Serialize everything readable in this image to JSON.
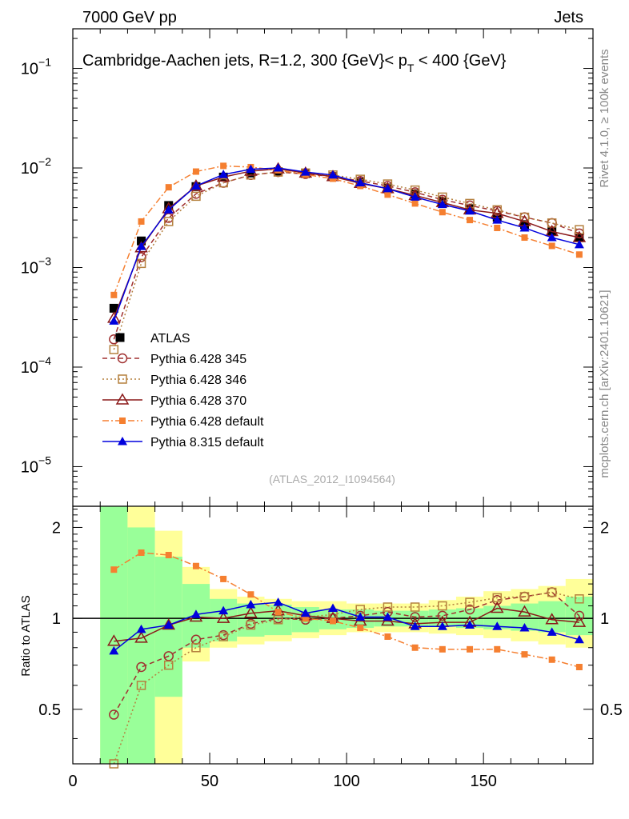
{
  "header": {
    "left": "7000 GeV pp",
    "right": "Jets"
  },
  "side": {
    "rivet": "Rivet 4.1.0, ≥ 100k events",
    "mcplots": "mcplots.cern.ch [arXiv:2401.10621]"
  },
  "colors": {
    "atlas": "#000000",
    "p345": "#a03030",
    "p346": "#b5813f",
    "p370": "#8b1a1a",
    "p6def": "#f57f30",
    "p8def": "#0000dd",
    "band_inner": "#99ff99",
    "band_outer": "#ffff99",
    "ref_line": "#000000"
  },
  "chart_data": [
    {
      "type": "line",
      "panel": "main",
      "title": "Cambridge-Aachen jets, R=1.2, 300 {GeV}< p_T < 400 {GeV}",
      "title_parts": {
        "main": "Cambridge-Aachen jets, R=1.2, 300 {GeV}< p",
        "sub": "T",
        "tail": " < 400 {GeV}"
      },
      "watermark": "(ATLAS_2012_I1094564)",
      "yscale": "log",
      "xlim": [
        0,
        190
      ],
      "ylim": [
        4e-06,
        0.25
      ],
      "ytick_labels": [
        {
          "base": "10",
          "exp": "−1"
        },
        {
          "base": "10",
          "exp": "−2"
        },
        {
          "base": "10",
          "exp": "−3"
        },
        {
          "base": "10",
          "exp": "−4"
        },
        {
          "base": "10",
          "exp": "−5"
        }
      ],
      "x": [
        15,
        25,
        35,
        45,
        55,
        65,
        75,
        85,
        95,
        105,
        115,
        125,
        135,
        145,
        155,
        165,
        175,
        185
      ],
      "series": [
        {
          "name": "ATLAS",
          "key": "atlas",
          "values": [
            0.00039,
            0.00185,
            0.0042,
            0.0065,
            0.0081,
            0.0089,
            0.0092,
            0.0088,
            0.0082,
            0.0072,
            0.0063,
            0.0055,
            0.0046,
            0.0039,
            0.0032,
            0.0027,
            0.0023,
            0.002
          ]
        },
        {
          "name": "Pythia 6.428 345",
          "key": "p345",
          "values": [
            0.00019,
            0.00127,
            0.00315,
            0.0055,
            0.0071,
            0.0085,
            0.0091,
            0.0087,
            0.0082,
            0.0074,
            0.0066,
            0.0057,
            0.0048,
            0.0042,
            0.0037,
            0.0032,
            0.0028,
            0.0022
          ]
        },
        {
          "name": "Pythia 6.428 346",
          "key": "p346",
          "values": [
            0.00015,
            0.0011,
            0.0029,
            0.0052,
            0.0071,
            0.0085,
            0.0091,
            0.0089,
            0.0085,
            0.0077,
            0.0069,
            0.006,
            0.0051,
            0.0044,
            0.0038,
            0.0032,
            0.0028,
            0.0024
          ]
        },
        {
          "name": "Pythia 6.428 370",
          "key": "p370",
          "values": [
            0.00031,
            0.00158,
            0.0039,
            0.0066,
            0.0081,
            0.0093,
            0.0098,
            0.0089,
            0.0082,
            0.007,
            0.0062,
            0.0053,
            0.0045,
            0.0038,
            0.0035,
            0.0029,
            0.0023,
            0.002
          ]
        },
        {
          "name": "Pythia 6.428 default",
          "key": "p6def",
          "values": [
            0.00053,
            0.0029,
            0.0064,
            0.0092,
            0.0105,
            0.0102,
            0.0095,
            0.0086,
            0.0078,
            0.0066,
            0.0054,
            0.0044,
            0.0036,
            0.003,
            0.0025,
            0.002,
            0.00165,
            0.00135
          ]
        },
        {
          "name": "Pythia 8.315 default",
          "key": "p8def",
          "values": [
            0.00029,
            0.00163,
            0.0038,
            0.0066,
            0.0086,
            0.0097,
            0.01,
            0.0091,
            0.0085,
            0.0071,
            0.0062,
            0.0051,
            0.0043,
            0.0037,
            0.003,
            0.0025,
            0.002,
            0.0017
          ]
        }
      ]
    },
    {
      "type": "line",
      "panel": "ratio",
      "ylabel": "Ratio to ATLAS",
      "xlim": [
        0,
        190
      ],
      "ylim": [
        0.33,
        2.35
      ],
      "yscale": "log",
      "yticks": [
        0.5,
        1,
        2
      ],
      "ytick_labels": [
        "0.5",
        "1",
        "2"
      ],
      "xticks": [
        0,
        50,
        100,
        150
      ],
      "xtick_labels": [
        "0",
        "50",
        "100",
        "150"
      ],
      "reference": 1.0,
      "bands": [
        {
          "lo": 10,
          "hi": 20,
          "inner": [
            0.3,
            2.6
          ],
          "outer": [
            0.3,
            2.6
          ]
        },
        {
          "lo": 20,
          "hi": 30,
          "inner": [
            0.3,
            2.0
          ],
          "outer": [
            0.3,
            2.6
          ]
        },
        {
          "lo": 30,
          "hi": 40,
          "inner": [
            0.55,
            1.6
          ],
          "outer": [
            0.3,
            1.95
          ]
        },
        {
          "lo": 40,
          "hi": 50,
          "inner": [
            0.8,
            1.3
          ],
          "outer": [
            0.72,
            1.48
          ]
        },
        {
          "lo": 50,
          "hi": 60,
          "inner": [
            0.84,
            1.16
          ],
          "outer": [
            0.8,
            1.25
          ]
        },
        {
          "lo": 60,
          "hi": 70,
          "inner": [
            0.87,
            1.12
          ],
          "outer": [
            0.82,
            1.18
          ]
        },
        {
          "lo": 70,
          "hi": 80,
          "inner": [
            0.88,
            1.11
          ],
          "outer": [
            0.84,
            1.16
          ]
        },
        {
          "lo": 80,
          "hi": 90,
          "inner": [
            0.9,
            1.09
          ],
          "outer": [
            0.86,
            1.14
          ]
        },
        {
          "lo": 90,
          "hi": 100,
          "inner": [
            0.92,
            1.07
          ],
          "outer": [
            0.88,
            1.14
          ]
        },
        {
          "lo": 100,
          "hi": 110,
          "inner": [
            0.93,
            1.07
          ],
          "outer": [
            0.9,
            1.12
          ]
        },
        {
          "lo": 110,
          "hi": 120,
          "inner": [
            0.94,
            1.06
          ],
          "outer": [
            0.9,
            1.12
          ]
        },
        {
          "lo": 120,
          "hi": 130,
          "inner": [
            0.94,
            1.06
          ],
          "outer": [
            0.9,
            1.12
          ]
        },
        {
          "lo": 130,
          "hi": 140,
          "inner": [
            0.94,
            1.07
          ],
          "outer": [
            0.89,
            1.15
          ]
        },
        {
          "lo": 140,
          "hi": 150,
          "inner": [
            0.93,
            1.08
          ],
          "outer": [
            0.88,
            1.18
          ]
        },
        {
          "lo": 150,
          "hi": 160,
          "inner": [
            0.92,
            1.1
          ],
          "outer": [
            0.86,
            1.23
          ]
        },
        {
          "lo": 160,
          "hi": 170,
          "inner": [
            0.91,
            1.12
          ],
          "outer": [
            0.84,
            1.25
          ]
        },
        {
          "lo": 170,
          "hi": 180,
          "inner": [
            0.9,
            1.14
          ],
          "outer": [
            0.82,
            1.28
          ]
        },
        {
          "lo": 180,
          "hi": 190,
          "inner": [
            0.88,
            1.18
          ],
          "outer": [
            0.8,
            1.35
          ]
        }
      ],
      "x": [
        15,
        25,
        35,
        45,
        55,
        65,
        75,
        85,
        95,
        105,
        115,
        125,
        135,
        145,
        155,
        165,
        175,
        185
      ],
      "series": [
        {
          "name": "Pythia 6.428 345",
          "key": "p345",
          "values": [
            0.48,
            0.69,
            0.75,
            0.85,
            0.88,
            0.96,
            1.0,
            0.99,
            1.0,
            1.02,
            1.05,
            1.01,
            1.02,
            1.07,
            1.15,
            1.18,
            1.22,
            1.02
          ]
        },
        {
          "name": "Pythia 6.428 346",
          "key": "p346",
          "values": [
            0.33,
            0.6,
            0.7,
            0.8,
            0.87,
            0.95,
            0.99,
            1.01,
            1.03,
            1.07,
            1.09,
            1.09,
            1.1,
            1.13,
            1.17,
            1.18,
            1.22,
            1.16
          ]
        },
        {
          "name": "Pythia 6.428 370",
          "key": "p370",
          "values": [
            0.84,
            0.86,
            0.95,
            1.01,
            1.0,
            1.04,
            1.06,
            1.02,
            1.0,
            0.98,
            0.98,
            0.96,
            0.97,
            0.97,
            1.08,
            1.05,
            0.99,
            0.97
          ]
        },
        {
          "name": "Pythia 6.428 default",
          "key": "p6def",
          "values": [
            1.45,
            1.65,
            1.62,
            1.49,
            1.35,
            1.2,
            1.05,
            1.0,
            0.98,
            0.93,
            0.87,
            0.8,
            0.79,
            0.79,
            0.79,
            0.76,
            0.73,
            0.69
          ]
        },
        {
          "name": "Pythia 8.315 default",
          "key": "p8def",
          "values": [
            0.78,
            0.92,
            0.95,
            1.03,
            1.06,
            1.11,
            1.13,
            1.04,
            1.08,
            1.01,
            1.01,
            0.94,
            0.94,
            0.95,
            0.94,
            0.93,
            0.9,
            0.85
          ]
        }
      ]
    }
  ]
}
